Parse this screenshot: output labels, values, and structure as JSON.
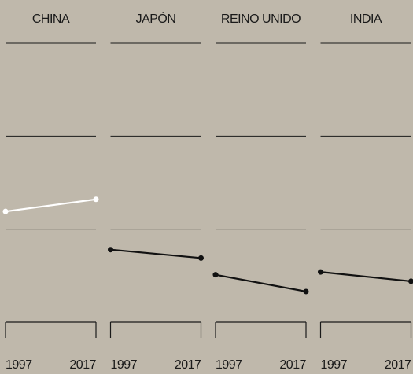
{
  "chart_data": {
    "type": "line",
    "x": [
      1997,
      2017
    ],
    "xlim": [
      1997,
      2017
    ],
    "xticks": [
      1997,
      2017
    ],
    "ylim": [
      0,
      30
    ],
    "yticks": [
      10,
      20,
      30
    ],
    "grid": true,
    "series": [
      {
        "name": "CHINA",
        "color": "#ffffff",
        "values": [
          11.9,
          13.2
        ]
      },
      {
        "name": "JAPÓN",
        "color": "#111111",
        "values": [
          7.8,
          6.9
        ]
      },
      {
        "name": "REINO UNIDO",
        "color": "#111111",
        "values": [
          5.1,
          3.3
        ]
      },
      {
        "name": "INDIA",
        "color": "#111111",
        "values": [
          5.4,
          4.4
        ]
      }
    ]
  }
}
